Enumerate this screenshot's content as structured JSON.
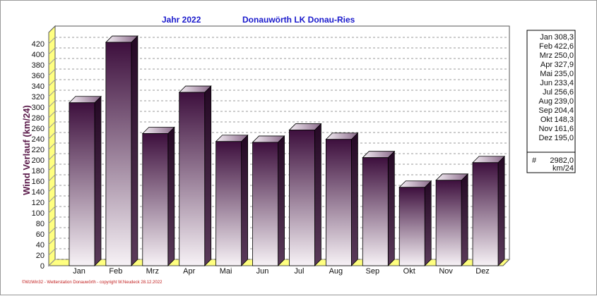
{
  "chart_data": {
    "type": "bar",
    "title_left": "Jahr  2022",
    "title_right": "Donauwörth LK Donau-Ries",
    "ylabel": "Wind Verlauf  (km/24)",
    "xlabel": "",
    "ylim": [
      0,
      420
    ],
    "ytick_step": 20,
    "grid": true,
    "legend_position": "right",
    "categories": [
      "Jan",
      "Feb",
      "Mrz",
      "Apr",
      "Mai",
      "Jun",
      "Jul",
      "Aug",
      "Sep",
      "Okt",
      "Nov",
      "Dez"
    ],
    "values": [
      308.3,
      422.6,
      250.0,
      327.9,
      235.0,
      233.4,
      256.6,
      239.0,
      204.4,
      148.3,
      161.6,
      195.0
    ],
    "legend_values": [
      "308,3",
      "422,6",
      "250,0",
      "327,9",
      "235,0",
      "233,4",
      "256,6",
      "239,0",
      "204,4",
      "148,3",
      "161,6",
      "195,0"
    ],
    "total_symbol": "#",
    "total_value": "2982,0",
    "total_unit": "km/24",
    "colors": {
      "bar_top": "#3d0f3d",
      "bar_bottom": "#f7f2f6",
      "bar_side": "#2a0a2a",
      "floor": "#ffff80",
      "grid": "#9a9a9a",
      "plot_bg": "#e6e6e6",
      "title": "#1a1acc"
    }
  },
  "footer": "©WzWin32 - Wetterstation Donauwörth - copyright W.Neudeck 28.12.2022"
}
